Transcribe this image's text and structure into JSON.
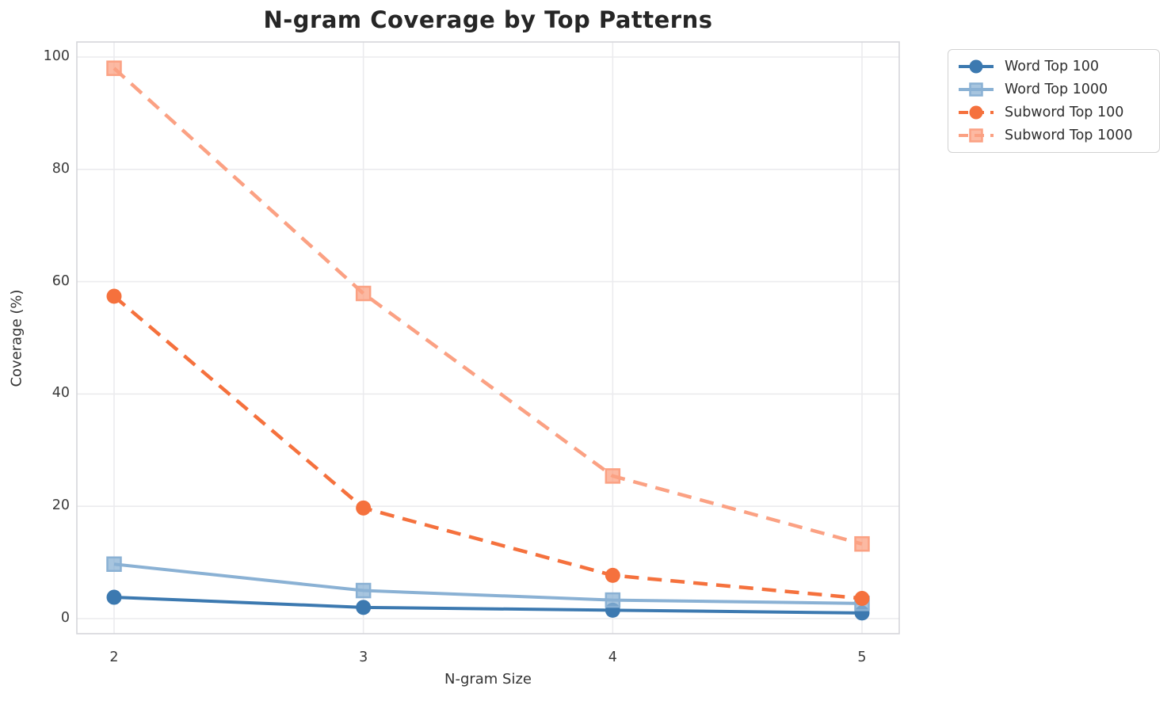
{
  "figure": {
    "title": "N-gram Coverage by Top Patterns"
  },
  "chart_data": {
    "type": "line",
    "title": "N-gram Coverage by Top Patterns",
    "xlabel": "N-gram Size",
    "ylabel": "Coverage (%)",
    "x": [
      2,
      3,
      4,
      5
    ],
    "xtick_labels": [
      "2",
      "3",
      "4",
      "5"
    ],
    "ytick_values": [
      0,
      20,
      40,
      60,
      80,
      100
    ],
    "ytick_labels": [
      "0",
      "20",
      "40",
      "60",
      "80",
      "100"
    ],
    "ylim": [
      0,
      100
    ],
    "grid": true,
    "legend_position": "outside-top-right",
    "series": [
      {
        "name": "Word Top 100",
        "values": [
          3.8,
          2.0,
          1.5,
          1.0
        ],
        "color": "#3C79B0",
        "marker": "circle",
        "line_style": "solid"
      },
      {
        "name": "Word Top 1000",
        "values": [
          9.7,
          5.0,
          3.3,
          2.7
        ],
        "color": "#8AB1D4",
        "marker": "square",
        "line_style": "solid"
      },
      {
        "name": "Subword Top 100",
        "values": [
          57.4,
          19.7,
          7.7,
          3.6
        ],
        "color": "#F5713D",
        "marker": "circle",
        "line_style": "dashed"
      },
      {
        "name": "Subword Top 1000",
        "values": [
          98.0,
          57.9,
          25.4,
          13.3
        ],
        "color": "#FBA183",
        "marker": "square",
        "line_style": "dashed"
      }
    ],
    "style": {
      "grid_color": "#ebebee",
      "spine_color": "#d5d6da",
      "background": "#ffffff"
    }
  }
}
